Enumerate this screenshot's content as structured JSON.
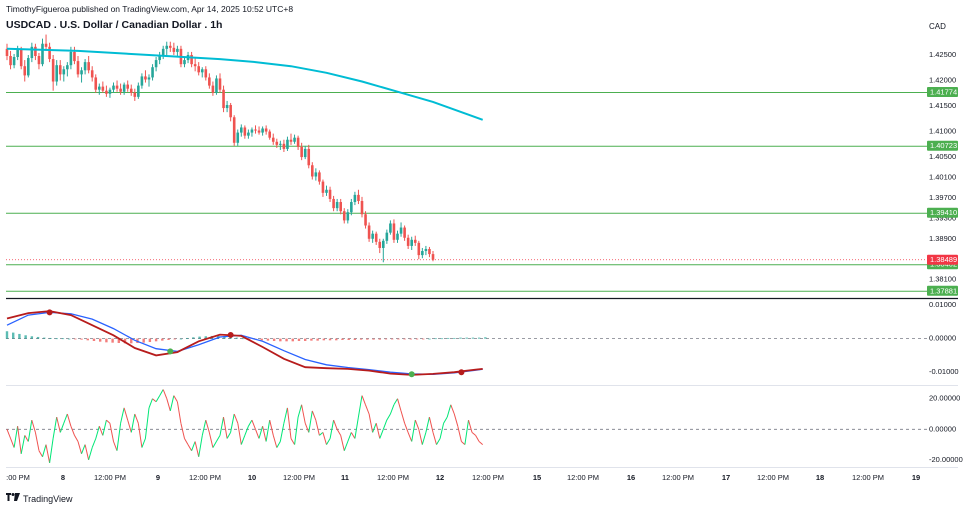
{
  "header": {
    "published_line": "TimothyFigueroa published on TradingView.com, Apr 14, 2025 10:52 UTC+8",
    "title": "USDCAD . U.S. Dollar / Canadian Dollar . 1h"
  },
  "currency_label": "CAD",
  "footer": {
    "brand": "TradingView"
  },
  "colors": {
    "up": "#26a69a",
    "down": "#ef5350",
    "ma": "#00bcd4",
    "level_line": "#4caf50",
    "level_box": "#4caf50",
    "price_box": "#f23645",
    "macd": "#b71c1c",
    "signal": "#2962ff",
    "hist_pos": "#26a69a",
    "hist_neg": "#ef5350",
    "osc_up": "#00e676",
    "osc_down": "#ef5350"
  },
  "chart_data": [
    {
      "type": "candlestick",
      "title": "USDCAD . U.S. Dollar / Canadian Dollar . 1h",
      "x_tick_labels": [
        ":00 PM",
        "8",
        "12:00 PM",
        "9",
        "12:00 PM",
        "10",
        "12:00 PM",
        "11",
        "12:00 PM",
        "12",
        "12:00 PM",
        "15",
        "12:00 PM",
        "16",
        "12:00 PM",
        "17",
        "12:00 PM",
        "18",
        "12:00 PM",
        "19"
      ],
      "y_tick_labels": [
        "1.42500",
        "1.42000",
        "1.41500",
        "1.41000",
        "1.40500",
        "1.40100",
        "1.39700",
        "1.39300",
        "1.38900",
        "1.38500",
        "1.38100"
      ],
      "ylim": [
        1.3774,
        1.4295
      ],
      "horizontal_levels": [
        "1.41774",
        "1.40723",
        "1.39410",
        "1.38402",
        "1.37881"
      ],
      "last_price": "1.38489",
      "moving_average": [
        [
          0,
          1.4262
        ],
        [
          20,
          1.4258
        ],
        [
          40,
          1.425
        ],
        [
          60,
          1.4242
        ],
        [
          70,
          1.4236
        ],
        [
          80,
          1.4228
        ],
        [
          90,
          1.4215
        ],
        [
          100,
          1.4198
        ],
        [
          110,
          1.4178
        ],
        [
          120,
          1.4158
        ],
        [
          130,
          1.4133
        ],
        [
          134,
          1.4123
        ]
      ],
      "candles": [
        [
          1.4262,
          1.4272,
          1.424,
          1.4248
        ],
        [
          1.4248,
          1.4258,
          1.4222,
          1.423
        ],
        [
          1.423,
          1.4252,
          1.4224,
          1.4246
        ],
        [
          1.4246,
          1.4268,
          1.424,
          1.4262
        ],
        [
          1.4262,
          1.4266,
          1.4222,
          1.4228
        ],
        [
          1.4228,
          1.424,
          1.4198,
          1.421
        ],
        [
          1.421,
          1.425,
          1.4206,
          1.4244
        ],
        [
          1.4244,
          1.4274,
          1.4236,
          1.4266
        ],
        [
          1.4266,
          1.4272,
          1.424,
          1.4248
        ],
        [
          1.4248,
          1.4254,
          1.4222,
          1.4232
        ],
        [
          1.4232,
          1.4282,
          1.4228,
          1.4272
        ],
        [
          1.4272,
          1.429,
          1.4258,
          1.4266
        ],
        [
          1.4266,
          1.4274,
          1.4236,
          1.4242
        ],
        [
          1.4242,
          1.425,
          1.418,
          1.4198
        ],
        [
          1.4198,
          1.424,
          1.419,
          1.423
        ],
        [
          1.423,
          1.424,
          1.42,
          1.4212
        ],
        [
          1.4212,
          1.4228,
          1.4198,
          1.4222
        ],
        [
          1.4222,
          1.4236,
          1.4208,
          1.423
        ],
        [
          1.423,
          1.4266,
          1.4222,
          1.4256
        ],
        [
          1.4256,
          1.4266,
          1.4232,
          1.4238
        ],
        [
          1.4238,
          1.4248,
          1.4206,
          1.4212
        ],
        [
          1.4212,
          1.4226,
          1.4196,
          1.422
        ],
        [
          1.422,
          1.4242,
          1.4212,
          1.4236
        ],
        [
          1.4236,
          1.4248,
          1.4214,
          1.422
        ],
        [
          1.422,
          1.4228,
          1.4198,
          1.4206
        ],
        [
          1.4206,
          1.4212,
          1.4176,
          1.4182
        ],
        [
          1.4182,
          1.4194,
          1.4172,
          1.4188
        ],
        [
          1.4188,
          1.4198,
          1.4176,
          1.418
        ],
        [
          1.418,
          1.419,
          1.4168,
          1.4174
        ],
        [
          1.4174,
          1.4186,
          1.4166,
          1.4182
        ],
        [
          1.4182,
          1.4196,
          1.4176,
          1.419
        ],
        [
          1.419,
          1.42,
          1.4178,
          1.4184
        ],
        [
          1.4184,
          1.4194,
          1.4172,
          1.4178
        ],
        [
          1.4178,
          1.4196,
          1.4172,
          1.4192
        ],
        [
          1.4192,
          1.42,
          1.4178,
          1.4184
        ],
        [
          1.4184,
          1.4192,
          1.417,
          1.4176
        ],
        [
          1.4176,
          1.4184,
          1.416,
          1.4168
        ],
        [
          1.4168,
          1.4196,
          1.4164,
          1.419
        ],
        [
          1.419,
          1.4214,
          1.4184,
          1.4208
        ],
        [
          1.4208,
          1.422,
          1.4196,
          1.4202
        ],
        [
          1.4202,
          1.4212,
          1.4188,
          1.4206
        ],
        [
          1.4206,
          1.4232,
          1.42,
          1.4226
        ],
        [
          1.4226,
          1.4246,
          1.4218,
          1.424
        ],
        [
          1.424,
          1.4256,
          1.4232,
          1.425
        ],
        [
          1.425,
          1.4268,
          1.4242,
          1.4262
        ],
        [
          1.4262,
          1.4276,
          1.425,
          1.4268
        ],
        [
          1.4268,
          1.4276,
          1.4256,
          1.4264
        ],
        [
          1.4264,
          1.4274,
          1.425,
          1.4256
        ],
        [
          1.4256,
          1.4268,
          1.4246,
          1.4262
        ],
        [
          1.4262,
          1.4268,
          1.4226,
          1.4232
        ],
        [
          1.4232,
          1.4244,
          1.4226,
          1.424
        ],
        [
          1.424,
          1.4256,
          1.4234,
          1.425
        ],
        [
          1.425,
          1.4256,
          1.4226,
          1.4232
        ],
        [
          1.4232,
          1.4244,
          1.4218,
          1.4228
        ],
        [
          1.4228,
          1.4236,
          1.421,
          1.4216
        ],
        [
          1.4216,
          1.4226,
          1.4206,
          1.4222
        ],
        [
          1.4222,
          1.4228,
          1.42,
          1.4206
        ],
        [
          1.4206,
          1.4214,
          1.4184,
          1.419
        ],
        [
          1.419,
          1.4198,
          1.417,
          1.4176
        ],
        [
          1.4176,
          1.421,
          1.4172,
          1.4204
        ],
        [
          1.4204,
          1.4214,
          1.4176,
          1.4182
        ],
        [
          1.4182,
          1.419,
          1.4138,
          1.4146
        ],
        [
          1.4146,
          1.416,
          1.4138,
          1.4152
        ],
        [
          1.4152,
          1.4156,
          1.412,
          1.4128
        ],
        [
          1.4128,
          1.4132,
          1.4072,
          1.4078
        ],
        [
          1.4078,
          1.4104,
          1.4072,
          1.4098
        ],
        [
          1.4098,
          1.4114,
          1.409,
          1.4108
        ],
        [
          1.4108,
          1.4112,
          1.4086,
          1.4092
        ],
        [
          1.4092,
          1.4104,
          1.4086,
          1.4098
        ],
        [
          1.4098,
          1.4108,
          1.409,
          1.4104
        ],
        [
          1.4104,
          1.4112,
          1.4096,
          1.4102
        ],
        [
          1.4102,
          1.411,
          1.4094,
          1.4098
        ],
        [
          1.4098,
          1.411,
          1.4092,
          1.4106
        ],
        [
          1.4106,
          1.4112,
          1.4094,
          1.41
        ],
        [
          1.41,
          1.4104,
          1.4084,
          1.4088
        ],
        [
          1.4088,
          1.4096,
          1.4074,
          1.408
        ],
        [
          1.408,
          1.4086,
          1.4068,
          1.4074
        ],
        [
          1.4074,
          1.4082,
          1.4064,
          1.4076
        ],
        [
          1.4076,
          1.4084,
          1.406,
          1.4066
        ],
        [
          1.4066,
          1.409,
          1.4062,
          1.4084
        ],
        [
          1.4084,
          1.4096,
          1.4074,
          1.408
        ],
        [
          1.408,
          1.4094,
          1.4076,
          1.4088
        ],
        [
          1.4088,
          1.4092,
          1.4064,
          1.407
        ],
        [
          1.407,
          1.4078,
          1.4044,
          1.405
        ],
        [
          1.405,
          1.4072,
          1.4046,
          1.4066
        ],
        [
          1.4066,
          1.4074,
          1.4028,
          1.4034
        ],
        [
          1.4034,
          1.404,
          1.4006,
          1.4012
        ],
        [
          1.4012,
          1.4028,
          1.4004,
          1.402
        ],
        [
          1.402,
          1.4024,
          1.3996,
          1.4002
        ],
        [
          1.4002,
          1.4006,
          1.3972,
          1.398
        ],
        [
          1.398,
          1.3994,
          1.3974,
          1.3986
        ],
        [
          1.3986,
          1.3992,
          1.3962,
          1.3968
        ],
        [
          1.3968,
          1.3974,
          1.3944,
          1.395
        ],
        [
          1.395,
          1.3968,
          1.3944,
          1.3962
        ],
        [
          1.3962,
          1.3968,
          1.3938,
          1.3944
        ],
        [
          1.3944,
          1.395,
          1.392,
          1.3926
        ],
        [
          1.3926,
          1.3948,
          1.392,
          1.3942
        ],
        [
          1.3942,
          1.3968,
          1.3936,
          1.3962
        ],
        [
          1.3962,
          1.3982,
          1.3956,
          1.3976
        ],
        [
          1.3976,
          1.3986,
          1.3958,
          1.3964
        ],
        [
          1.3964,
          1.3972,
          1.3932,
          1.3938
        ],
        [
          1.3938,
          1.3944,
          1.391,
          1.3916
        ],
        [
          1.3916,
          1.3922,
          1.3884,
          1.389
        ],
        [
          1.389,
          1.3906,
          1.3882,
          1.39
        ],
        [
          1.39,
          1.3904,
          1.3878,
          1.3884
        ],
        [
          1.3884,
          1.389,
          1.3862,
          1.3872
        ],
        [
          1.3872,
          1.389,
          1.3844,
          1.3886
        ],
        [
          1.3886,
          1.3908,
          1.388,
          1.3902
        ],
        [
          1.3902,
          1.3926,
          1.3898,
          1.392
        ],
        [
          1.392,
          1.3928,
          1.3882,
          1.3888
        ],
        [
          1.3888,
          1.3906,
          1.3882,
          1.39
        ],
        [
          1.39,
          1.3922,
          1.3894,
          1.3912
        ],
        [
          1.3912,
          1.3916,
          1.3886,
          1.3892
        ],
        [
          1.3892,
          1.3898,
          1.387,
          1.3876
        ],
        [
          1.3876,
          1.3894,
          1.3868,
          1.3888
        ],
        [
          1.3888,
          1.3896,
          1.3876,
          1.3882
        ],
        [
          1.3882,
          1.3886,
          1.385,
          1.3858
        ],
        [
          1.3858,
          1.3872,
          1.3852,
          1.3866
        ],
        [
          1.3866,
          1.3876,
          1.3858,
          1.387
        ],
        [
          1.387,
          1.3874,
          1.3854,
          1.386
        ],
        [
          1.386,
          1.3866,
          1.3846,
          1.3849
        ]
      ]
    },
    {
      "type": "line",
      "title": "",
      "y_tick_labels": [
        "0.01000",
        "0.00000",
        "-0.01000"
      ],
      "ylim": [
        -0.0135,
        0.0112
      ],
      "x": [
        0,
        6,
        12,
        18,
        24,
        30,
        36,
        42,
        48,
        54,
        60,
        66,
        72,
        78,
        84,
        90,
        96,
        102,
        108,
        114,
        120,
        126,
        132,
        134
      ],
      "series": [
        {
          "values": [
            0.006,
            0.0076,
            0.0082,
            0.007,
            0.004,
            0.001,
            -0.0028,
            -0.005,
            -0.004,
            -0.0008,
            0.0012,
            0.0008,
            -0.0025,
            -0.006,
            -0.0085,
            -0.0088,
            -0.009,
            -0.0095,
            -0.0104,
            -0.0108,
            -0.0105,
            -0.01,
            -0.0092,
            -0.009
          ]
        },
        {
          "values": [
            0.004,
            0.007,
            0.0078,
            0.0074,
            0.0058,
            0.003,
            -0.0005,
            -0.003,
            -0.0038,
            -0.0018,
            0.0005,
            0.001,
            -0.0008,
            -0.0036,
            -0.0062,
            -0.0078,
            -0.0086,
            -0.0092,
            -0.01,
            -0.0105,
            -0.0106,
            -0.0102,
            -0.0094,
            -0.0091
          ]
        }
      ],
      "histogram": [
        0.0022,
        0.0018,
        0.0014,
        0.001,
        0.0007,
        0.0005,
        0.0003,
        0.0002,
        0.0001,
        0.0001,
        0.0,
        -0.0001,
        -0.0003,
        -0.0005,
        -0.0007,
        -0.0009,
        -0.0011,
        -0.0012,
        -0.0013,
        -0.0014,
        -0.0014,
        -0.0013,
        -0.0012,
        -0.001,
        -0.0008,
        -0.0006,
        -0.0004,
        -0.0002,
        0.0,
        0.0002,
        0.0004,
        0.0006,
        0.0007,
        0.0008,
        0.0008,
        0.0007,
        0.0005,
        0.0003,
        0.0001,
        -0.0001,
        -0.0003,
        -0.0005,
        -0.0006,
        -0.0007,
        -0.0008,
        -0.0008,
        -0.0008,
        -0.0007,
        -0.0007,
        -0.0006,
        -0.0006,
        -0.0005,
        -0.0005,
        -0.0005,
        -0.0004,
        -0.0004,
        -0.0004,
        -0.0003,
        -0.0003,
        -0.0003,
        -0.0003,
        -0.0002,
        -0.0002,
        -0.0002,
        -0.0002,
        -0.0001,
        -0.0001,
        -0.0001,
        0.0,
        0.0001,
        0.0001,
        0.0002,
        0.0002,
        0.0003,
        0.0003,
        0.0003,
        0.0003,
        0.0004
      ],
      "cross_markers": [
        {
          "x": 12,
          "y": 0.0078,
          "color": "#b71c1c"
        },
        {
          "x": 46,
          "y": -0.0038,
          "color": "#4caf50"
        },
        {
          "x": 63,
          "y": 0.0011,
          "color": "#b71c1c"
        },
        {
          "x": 114,
          "y": -0.0106,
          "color": "#4caf50"
        },
        {
          "x": 128,
          "y": -0.01,
          "color": "#b71c1c"
        }
      ]
    },
    {
      "type": "line",
      "title": "",
      "y_tick_labels": [
        "20.00000",
        "0.00000",
        "-20.00000"
      ],
      "ylim": [
        -24,
        27
      ],
      "values": [
        0,
        -6,
        -12,
        2,
        -16,
        -4,
        -8,
        6,
        -2,
        -14,
        -18,
        -10,
        -22,
        -6,
        8,
        -2,
        4,
        10,
        2,
        -4,
        -8,
        -16,
        -10,
        -20,
        -12,
        -6,
        2,
        -4,
        6,
        4,
        -8,
        -14,
        4,
        14,
        6,
        -2,
        10,
        4,
        -12,
        -6,
        14,
        20,
        18,
        22,
        26,
        20,
        12,
        22,
        18,
        4,
        -6,
        -10,
        -14,
        -8,
        -18,
        -4,
        6,
        -2,
        -12,
        -8,
        -4,
        8,
        -6,
        -2,
        10,
        4,
        -10,
        -4,
        2,
        6,
        0,
        -6,
        2,
        -8,
        6,
        -4,
        -12,
        -8,
        4,
        14,
        -6,
        -10,
        8,
        16,
        4,
        -2,
        12,
        6,
        -4,
        -2,
        -10,
        -6,
        6,
        0,
        -4,
        -14,
        -8,
        -2,
        -6,
        8,
        22,
        16,
        10,
        -2,
        4,
        -6,
        0,
        6,
        10,
        16,
        20,
        12,
        4,
        -2,
        -8,
        6,
        0,
        -10,
        -2,
        8,
        -2,
        -10,
        -6,
        4,
        8,
        16,
        10,
        2,
        -8,
        -10,
        6,
        -2,
        -4,
        -8,
        -10
      ]
    }
  ]
}
